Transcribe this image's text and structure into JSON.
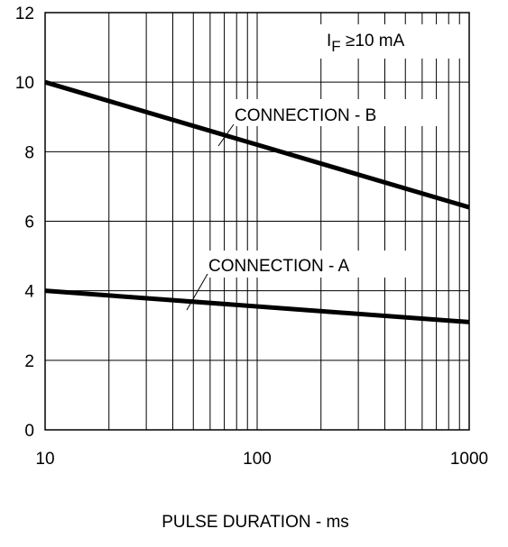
{
  "chart_data": {
    "type": "line",
    "title": "",
    "xlabel": "PULSE DURATION - ms",
    "ylabel": "",
    "xscale": "log",
    "xlim": [
      10,
      1000
    ],
    "ylim": [
      0,
      12
    ],
    "grid": true,
    "xticks": [
      "10",
      "100",
      "1000"
    ],
    "yticks": [
      "0",
      "2",
      "4",
      "6",
      "8",
      "10",
      "12"
    ],
    "x": [
      10,
      1000
    ],
    "series": [
      {
        "name": "CONNECTION - B",
        "values": [
          10.0,
          6.4
        ]
      },
      {
        "name": "CONNECTION - A",
        "values": [
          4.0,
          3.1
        ]
      }
    ],
    "condition": {
      "symbol": "I",
      "subscript": "F",
      "text": " ≥10 mA"
    }
  }
}
